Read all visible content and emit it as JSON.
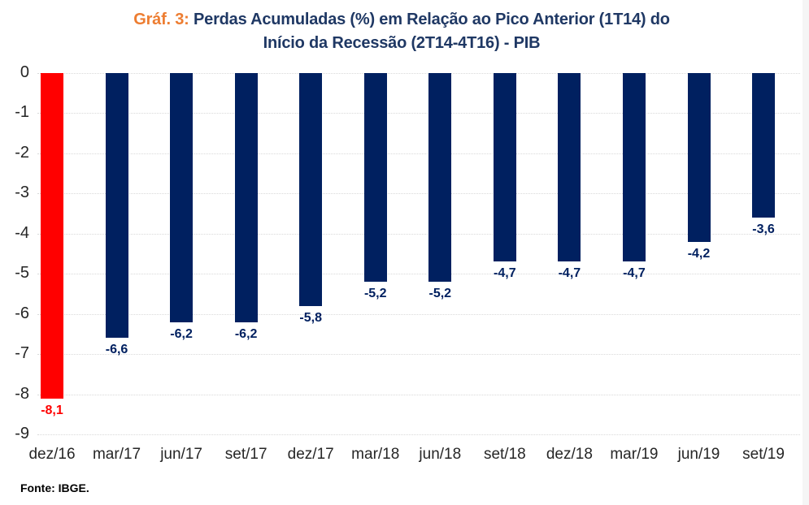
{
  "window": {
    "edge_color": "#f5f5f5",
    "background": "#ffffff"
  },
  "chart_data": {
    "type": "bar",
    "title": {
      "prefix": "Gráf. 3:",
      "line1": "Perdas Acumuladas (%) em Relação ao Pico Anterior (1T14) do",
      "line2": "Início da Recessão (2T14-4T16) - PIB",
      "prefix_color": "#ed7d31",
      "text_color": "#1f3864"
    },
    "categories": [
      "dez/16",
      "mar/17",
      "jun/17",
      "set/17",
      "dez/17",
      "mar/18",
      "jun/18",
      "set/18",
      "dez/18",
      "mar/19",
      "jun/19",
      "set/19"
    ],
    "values": [
      -8.1,
      -6.6,
      -6.2,
      -6.2,
      -5.8,
      -5.2,
      -5.2,
      -4.7,
      -4.7,
      -4.7,
      -4.2,
      -3.6
    ],
    "value_labels": [
      "-8,1",
      "-6,6",
      "-6,2",
      "-6,2",
      "-5,8",
      "-5,2",
      "-5,2",
      "-4,7",
      "-4,7",
      "-4,7",
      "-4,2",
      "-3,6"
    ],
    "bar_color": "#002060",
    "value_label_color": "#002060",
    "highlight": {
      "index": 0,
      "color": "#ff0000"
    },
    "ylim": [
      -9,
      0
    ],
    "yticks": [
      0,
      -1,
      -2,
      -3,
      -4,
      -5,
      -6,
      -7,
      -8,
      -9
    ],
    "ytick_labels": [
      "0",
      "-1",
      "-2",
      "-3",
      "-4",
      "-5",
      "-6",
      "-7",
      "-8",
      "-9"
    ],
    "grid": {
      "visible": true,
      "style": "dotted",
      "color": "#d9d9d9"
    },
    "legend": "none",
    "xlabel": "",
    "ylabel": "",
    "source": "Fonte: IBGE."
  }
}
